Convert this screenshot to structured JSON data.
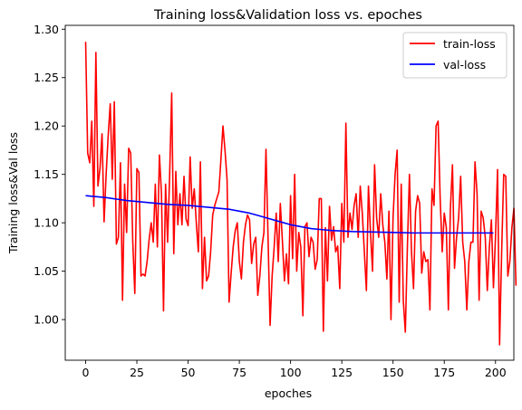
{
  "chart_data": {
    "type": "line",
    "title": "Training loss&Validation loss vs. epoches",
    "xlabel": "epoches",
    "ylabel": "Training loss&Val loss",
    "xlim": [
      -9.95,
      208.95
    ],
    "ylim": [
      0.958,
      1.304
    ],
    "xticks": [
      0,
      25,
      50,
      75,
      100,
      125,
      150,
      175,
      200
    ],
    "xtick_labels": [
      "0",
      "25",
      "50",
      "75",
      "100",
      "125",
      "150",
      "175",
      "200"
    ],
    "yticks": [
      1.0,
      1.05,
      1.1,
      1.15,
      1.2,
      1.25,
      1.3
    ],
    "ytick_labels": [
      "1.00",
      "1.05",
      "1.10",
      "1.15",
      "1.20",
      "1.25",
      "1.30"
    ],
    "grid": false,
    "legend": {
      "position": "top-right",
      "entries": [
        "train-loss",
        "val-loss"
      ]
    },
    "series": [
      {
        "name": "train-loss",
        "color": "#ff0000",
        "x_start": 0,
        "x_step": 1,
        "values": [
          1.287,
          1.172,
          1.162,
          1.205,
          1.117,
          1.276,
          1.138,
          1.156,
          1.192,
          1.101,
          1.15,
          1.19,
          1.223,
          1.145,
          1.225,
          1.078,
          1.085,
          1.162,
          1.02,
          1.14,
          1.09,
          1.177,
          1.172,
          1.08,
          1.027,
          1.156,
          1.152,
          1.045,
          1.047,
          1.045,
          1.06,
          1.083,
          1.1,
          1.08,
          1.14,
          1.075,
          1.17,
          1.13,
          1.009,
          1.14,
          1.08,
          1.15,
          1.234,
          1.068,
          1.153,
          1.098,
          1.13,
          1.098,
          1.148,
          1.104,
          1.097,
          1.168,
          1.115,
          1.135,
          1.1,
          1.07,
          1.163,
          1.032,
          1.085,
          1.04,
          1.045,
          1.07,
          1.108,
          1.118,
          1.125,
          1.132,
          1.165,
          1.2,
          1.175,
          1.145,
          1.018,
          1.048,
          1.075,
          1.092,
          1.1,
          1.06,
          1.042,
          1.08,
          1.098,
          1.108,
          1.103,
          1.058,
          1.078,
          1.085,
          1.025,
          1.045,
          1.075,
          1.09,
          1.176,
          1.085,
          0.994,
          1.045,
          1.075,
          1.11,
          1.06,
          1.12,
          1.082,
          1.04,
          1.068,
          1.037,
          1.128,
          1.063,
          1.15,
          1.05,
          1.09,
          1.075,
          1.004,
          1.096,
          1.1,
          1.065,
          1.085,
          1.08,
          1.052,
          1.062,
          1.125,
          1.125,
          0.988,
          1.095,
          1.04,
          1.117,
          1.082,
          1.096,
          1.07,
          1.076,
          1.032,
          1.12,
          1.08,
          1.203,
          1.085,
          1.11,
          1.093,
          1.118,
          1.13,
          1.085,
          1.138,
          1.11,
          1.07,
          1.03,
          1.138,
          1.09,
          1.05,
          1.16,
          1.105,
          1.085,
          1.13,
          1.098,
          1.08,
          1.042,
          1.112,
          1.0,
          1.105,
          1.15,
          1.175,
          1.018,
          1.14,
          1.02,
          0.987,
          1.075,
          1.15,
          1.07,
          1.032,
          1.112,
          1.128,
          1.12,
          1.048,
          1.07,
          1.06,
          1.062,
          1.01,
          1.135,
          1.118,
          1.2,
          1.205,
          1.125,
          1.07,
          1.11,
          1.095,
          1.01,
          1.115,
          1.16,
          1.053,
          1.085,
          1.105,
          1.148,
          1.08,
          1.06,
          1.01,
          1.06,
          1.08,
          1.08,
          1.163,
          1.13,
          1.02,
          1.112,
          1.105,
          1.085,
          1.03,
          1.075,
          1.103,
          1.033,
          1.085,
          1.155,
          0.974,
          1.07,
          1.15,
          1.148,
          1.045,
          1.06,
          1.095,
          1.115,
          1.035
        ]
      },
      {
        "name": "val-loss",
        "color": "#0000ff",
        "x": [
          0,
          10,
          20,
          30,
          40,
          50,
          60,
          70,
          75,
          80,
          85,
          90,
          95,
          100,
          105,
          110,
          115,
          120,
          130,
          140,
          150,
          160,
          170,
          180,
          190,
          199
        ],
        "values": [
          1.128,
          1.126,
          1.123,
          1.121,
          1.119,
          1.118,
          1.116,
          1.114,
          1.112,
          1.11,
          1.107,
          1.104,
          1.101,
          1.098,
          1.096,
          1.094,
          1.093,
          1.092,
          1.091,
          1.0905,
          1.09,
          1.0895,
          1.0895,
          1.0895,
          1.0895,
          1.0895
        ]
      }
    ]
  }
}
